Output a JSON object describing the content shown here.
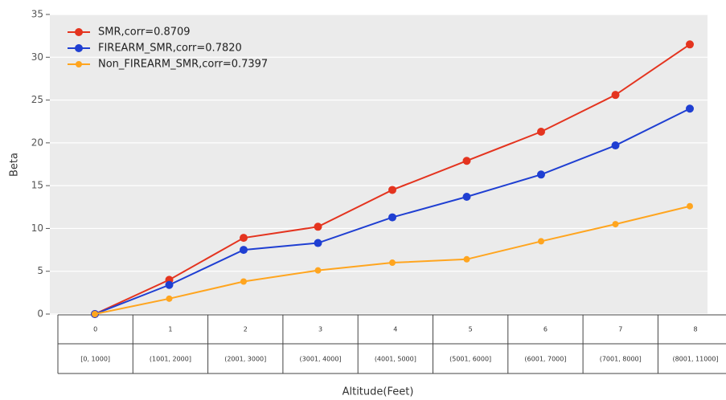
{
  "chart_data": {
    "type": "line",
    "x_label": "Altitude(Feet)",
    "y_label": "Beta",
    "categories": [
      "0",
      "1",
      "2",
      "3",
      "4",
      "5",
      "6",
      "7",
      "8"
    ],
    "ranges": [
      "[0, 1000]",
      "(1001, 2000]",
      "(2001, 3000]",
      "(3001, 4000]",
      "(4001, 5000]",
      "(5001, 6000]",
      "(6001, 7000]",
      "(7001, 8000]",
      "(8001, 11000]"
    ],
    "series": [
      {
        "name": "SMR,corr=0.8709",
        "color": "#e4341f",
        "values": [
          0,
          4.0,
          8.9,
          10.2,
          14.5,
          17.9,
          21.3,
          25.6,
          31.5
        ]
      },
      {
        "name": "FIREARM_SMR,corr=0.7820",
        "color": "#1f3fd2",
        "values": [
          0,
          3.4,
          7.5,
          8.3,
          11.3,
          13.7,
          16.3,
          19.7,
          24.0
        ]
      },
      {
        "name": "Non_FIREARM_SMR,corr=0.7397",
        "color": "#ffa51f",
        "values": [
          0,
          1.8,
          3.8,
          5.1,
          6.0,
          6.4,
          8.5,
          10.5,
          12.6
        ]
      }
    ],
    "ylim": [
      0,
      35
    ],
    "yticks": [
      0,
      5,
      10,
      15,
      20,
      25,
      30,
      35
    ],
    "grid": true,
    "legend": "upper left"
  }
}
